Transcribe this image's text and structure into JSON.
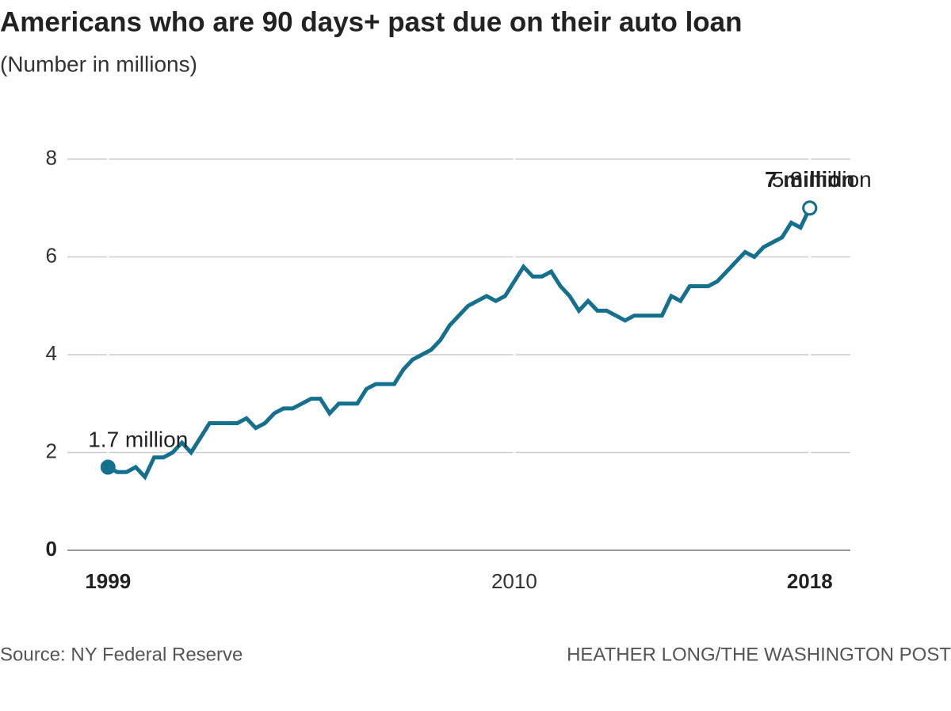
{
  "chart_data": {
    "type": "line",
    "title": "Americans who are 90 days+ past due on their auto loan",
    "subtitle": "(Number in millions)",
    "source": "Source: NY Federal Reserve",
    "credit": "HEATHER LONG/THE WASHINGTON POST",
    "annotations": [
      "1.7 million",
      "5.8 million",
      "7 million"
    ],
    "x": [
      1999,
      1999.25,
      1999.5,
      1999.75,
      2000,
      2000.25,
      2000.5,
      2000.75,
      2001,
      2001.25,
      2001.5,
      2001.75,
      2002,
      2002.25,
      2002.5,
      2002.75,
      2003,
      2003.25,
      2003.5,
      2003.75,
      2004,
      2004.25,
      2004.5,
      2004.75,
      2005,
      2005.25,
      2005.5,
      2005.75,
      2006,
      2006.25,
      2006.5,
      2006.75,
      2007,
      2007.25,
      2007.5,
      2007.75,
      2008,
      2008.25,
      2008.5,
      2008.75,
      2009,
      2009.25,
      2009.5,
      2009.75,
      2010,
      2010.25,
      2010.5,
      2010.75,
      2011,
      2011.25,
      2011.5,
      2011.75,
      2012,
      2012.25,
      2012.5,
      2012.75,
      2013,
      2013.25,
      2013.5,
      2013.75,
      2014,
      2014.25,
      2014.5,
      2014.75,
      2015,
      2015.25,
      2015.5,
      2015.75,
      2016,
      2016.25,
      2016.5,
      2016.75,
      2017,
      2017.25,
      2017.5,
      2017.75,
      2018
    ],
    "series": [
      {
        "name": "Past due 90+ days",
        "color": "#15708f",
        "values": [
          1.7,
          1.6,
          1.6,
          1.7,
          1.5,
          1.9,
          1.9,
          2.0,
          2.2,
          2.0,
          2.3,
          2.6,
          2.6,
          2.6,
          2.6,
          2.7,
          2.5,
          2.6,
          2.8,
          2.9,
          2.9,
          3.0,
          3.1,
          3.1,
          2.8,
          3.0,
          3.0,
          3.0,
          3.3,
          3.4,
          3.4,
          3.4,
          3.7,
          3.9,
          4.0,
          4.1,
          4.3,
          4.6,
          4.8,
          5.0,
          5.1,
          5.2,
          5.1,
          5.2,
          5.5,
          5.8,
          5.6,
          5.6,
          5.7,
          5.4,
          5.2,
          4.9,
          5.1,
          4.9,
          4.9,
          4.8,
          4.7,
          4.8,
          4.8,
          4.8,
          4.8,
          5.2,
          5.1,
          5.4,
          5.4,
          5.4,
          5.5,
          5.7,
          5.9,
          6.1,
          6.0,
          6.2,
          6.3,
          6.4,
          6.7,
          6.6,
          7.0
        ]
      }
    ],
    "xlim": [
      1997.9,
      2019.1
    ],
    "xticks": [
      1999,
      2010,
      2018
    ],
    "ylim": [
      0,
      8
    ],
    "yticks": [
      0,
      2,
      4,
      6,
      8
    ],
    "grid": true
  }
}
